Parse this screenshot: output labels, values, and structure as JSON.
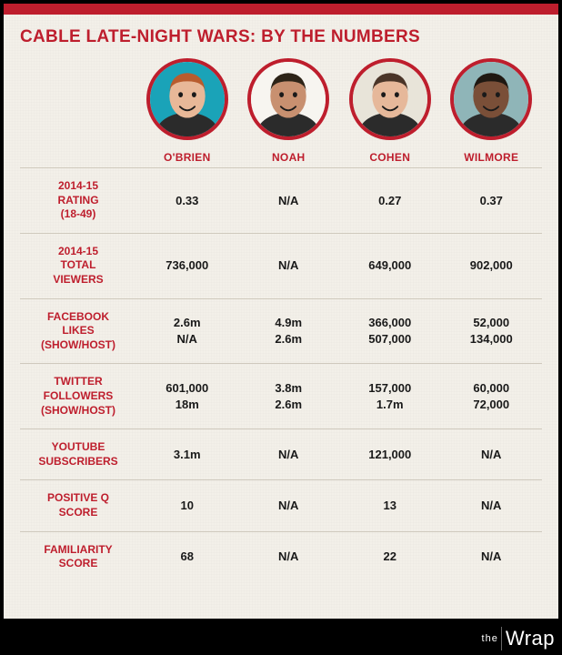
{
  "title": "CABLE LATE-NIGHT WARS: BY THE NUMBERS",
  "hosts": [
    {
      "name": "O'BRIEN",
      "bg": "#1aa3b8",
      "skin": "#e8b898",
      "hair": "#b85c2e"
    },
    {
      "name": "NOAH",
      "bg": "#f7f5f0",
      "skin": "#c89070",
      "hair": "#2d2418"
    },
    {
      "name": "COHEN",
      "bg": "#e8e4d9",
      "skin": "#e6b89a",
      "hair": "#4a3528"
    },
    {
      "name": "WILMORE",
      "bg": "#8fb5b8",
      "skin": "#7a4f38",
      "hair": "#1f1812"
    }
  ],
  "rows": [
    {
      "label": "2014-15\nRATING\n(18-49)",
      "cells": [
        [
          "0.33"
        ],
        [
          "N/A"
        ],
        [
          "0.27"
        ],
        [
          "0.37"
        ]
      ]
    },
    {
      "label": "2014-15\nTOTAL\nVIEWERS",
      "cells": [
        [
          "736,000"
        ],
        [
          "N/A"
        ],
        [
          "649,000"
        ],
        [
          "902,000"
        ]
      ]
    },
    {
      "label": "FACEBOOK\nLIKES\n(SHOW/HOST)",
      "cells": [
        [
          "2.6m",
          "N/A"
        ],
        [
          "4.9m",
          "2.6m"
        ],
        [
          "366,000",
          "507,000"
        ],
        [
          "52,000",
          "134,000"
        ]
      ]
    },
    {
      "label": "TWITTER\nFOLLOWERS\n(SHOW/HOST)",
      "cells": [
        [
          "601,000",
          "18m"
        ],
        [
          "3.8m",
          "2.6m"
        ],
        [
          "157,000",
          "1.7m"
        ],
        [
          "60,000",
          "72,000"
        ]
      ]
    },
    {
      "label": "YOUTUBE\nSUBSCRIBERS",
      "cells": [
        [
          "3.1m"
        ],
        [
          "N/A"
        ],
        [
          "121,000"
        ],
        [
          "N/A"
        ]
      ]
    },
    {
      "label": "POSITIVE Q\nSCORE",
      "cells": [
        [
          "10"
        ],
        [
          "N/A"
        ],
        [
          "13"
        ],
        [
          "N/A"
        ]
      ]
    },
    {
      "label": "FAMILIARITY\nSCORE",
      "cells": [
        [
          "68"
        ],
        [
          "N/A"
        ],
        [
          "22"
        ],
        [
          "N/A"
        ]
      ]
    }
  ],
  "footer": {
    "the": "the",
    "wrap": "Wrap"
  },
  "colors": {
    "accent": "#be1e2d",
    "paper": "#f3f0e9",
    "text": "#191919",
    "line": "#cfc9bd"
  }
}
